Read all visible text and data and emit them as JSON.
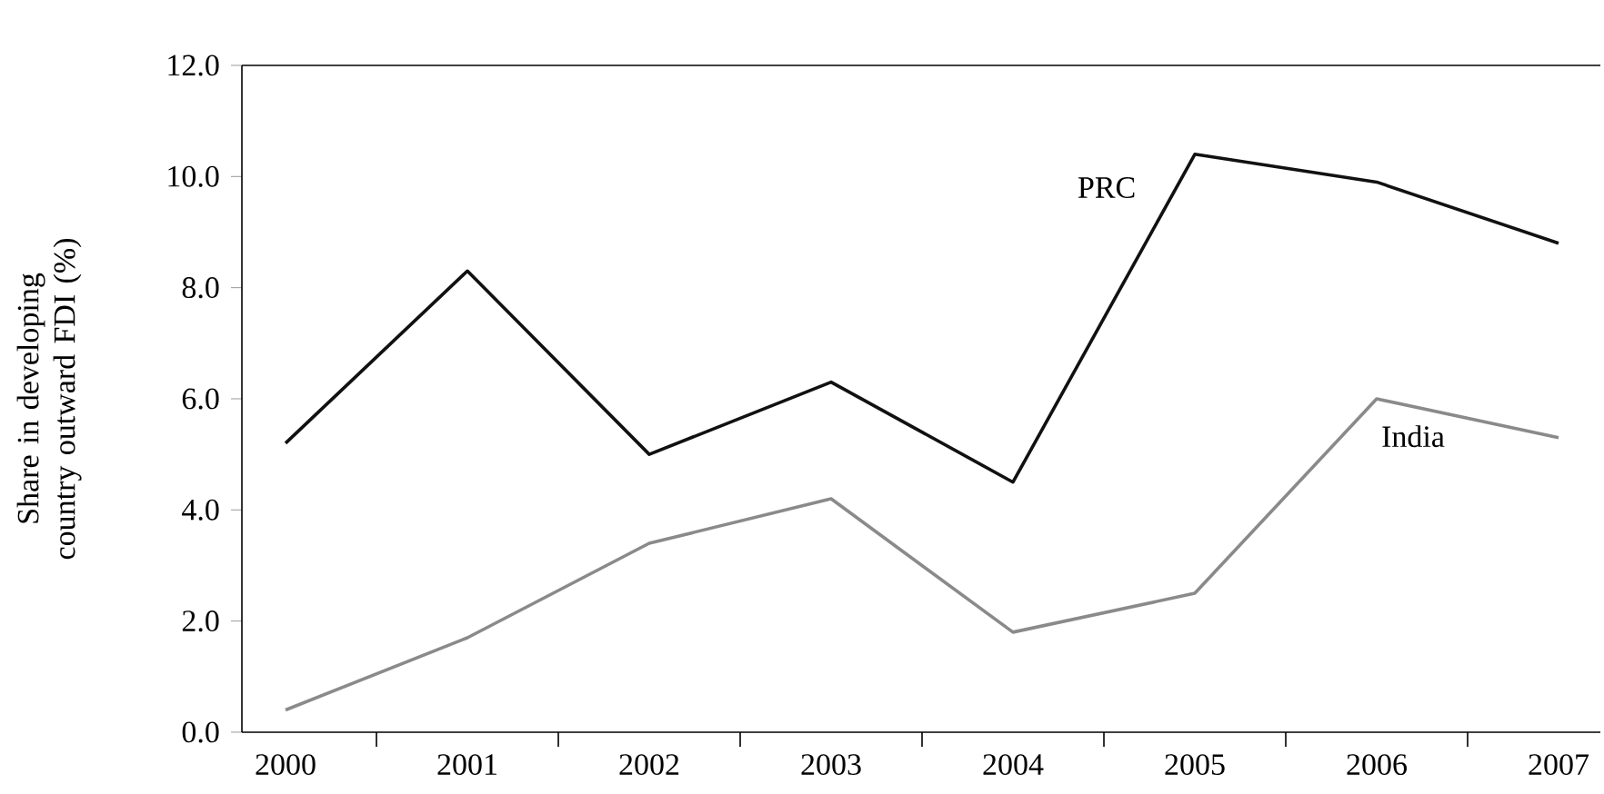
{
  "chart_data": {
    "type": "line",
    "ylabel": "Share in developing country outward FDI (%)",
    "categories": [
      "2000",
      "2001",
      "2002",
      "2003",
      "2004",
      "2005",
      "2006",
      "2007"
    ],
    "series": [
      {
        "name": "PRC",
        "color": "#111111",
        "values": [
          5.2,
          8.3,
          5.0,
          6.3,
          4.5,
          10.4,
          9.9,
          8.8
        ]
      },
      {
        "name": "India",
        "color": "#8a8a8a",
        "values": [
          0.4,
          1.7,
          3.4,
          4.2,
          1.8,
          2.5,
          6.0,
          5.3
        ]
      }
    ],
    "ylim": [
      0,
      12
    ],
    "yticks": [
      {
        "value": 0,
        "label": "0.0"
      },
      {
        "value": 2,
        "label": "2.0"
      },
      {
        "value": 4,
        "label": "4.0"
      },
      {
        "value": 6,
        "label": "6.0"
      },
      {
        "value": 8,
        "label": "8.0"
      },
      {
        "value": 10,
        "label": "10.0"
      },
      {
        "value": 12,
        "label": "12.0"
      }
    ],
    "grid": false,
    "marker": "none",
    "line_style": "solid"
  }
}
